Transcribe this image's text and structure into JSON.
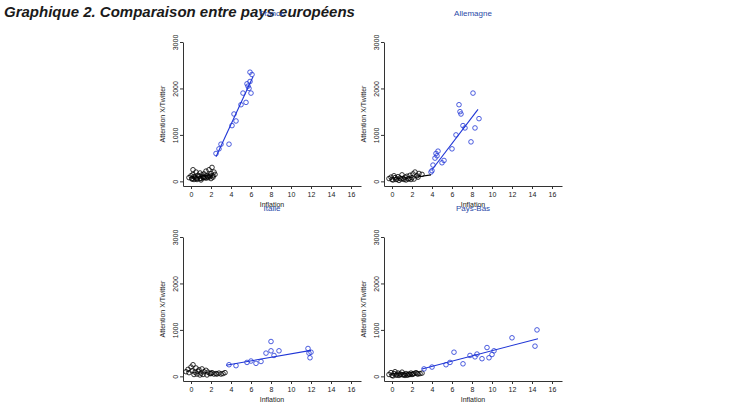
{
  "title": "Graphique 2. Comparaison entre pays européens",
  "chart_data": [
    {
      "type": "scatter",
      "title": "France",
      "x_label": "Inflation",
      "y_label": "Attention X/Twitter",
      "xlim": [
        -0.8,
        17
      ],
      "ylim": [
        -100,
        3000
      ],
      "xticks": [
        0,
        2,
        4,
        6,
        8,
        10,
        12,
        14,
        16
      ],
      "yticks": [
        0,
        1000,
        2000,
        3000
      ],
      "series": [
        {
          "color": "#000000",
          "marker": "circle",
          "x": [
            -0.2,
            0,
            0.1,
            0.2,
            0.3,
            0.4,
            0.5,
            0.6,
            0.7,
            0.8,
            0.9,
            1.0,
            1.1,
            1.2,
            1.3,
            1.4,
            1.5,
            1.6,
            1.7,
            1.8,
            1.9,
            2.0,
            2.1,
            2.2,
            2.3,
            2.4,
            0.1,
            0.3,
            0.5,
            1.0,
            1.2,
            1.5,
            1.7,
            0.2,
            0.6,
            0.9,
            1.3,
            1.9,
            2.0,
            2.2
          ],
          "values": [
            80,
            120,
            60,
            150,
            100,
            90,
            200,
            70,
            130,
            110,
            180,
            60,
            140,
            100,
            160,
            90,
            220,
            120,
            80,
            250,
            130,
            170,
            300,
            90,
            200,
            150,
            50,
            40,
            60,
            30,
            80,
            70,
            100,
            250,
            40,
            60,
            80,
            100,
            60,
            120
          ]
        },
        {
          "color": "#1f35d6",
          "marker": "circle",
          "x": [
            2.5,
            2.8,
            3.0,
            3.8,
            4.1,
            4.3,
            4.5,
            5.0,
            5.2,
            5.5,
            5.6,
            5.7,
            5.8,
            5.9,
            5.9,
            6.1,
            6.0
          ],
          "values": [
            600,
            700,
            800,
            800,
            1200,
            1450,
            1300,
            1650,
            1900,
            1700,
            2100,
            2050,
            2000,
            2150,
            2350,
            2300,
            1900
          ]
        },
        {
          "type": "line",
          "color": "#1f35d6",
          "x": [
            2.5,
            6.2
          ],
          "values": [
            530,
            2250
          ]
        }
      ]
    },
    {
      "type": "scatter",
      "title": "Allemagne",
      "x_label": "Inflation",
      "y_label": "Attention X/Twitter",
      "xlim": [
        -0.8,
        17
      ],
      "ylim": [
        -100,
        3000
      ],
      "xticks": [
        0,
        2,
        4,
        6,
        8,
        10,
        12,
        14,
        16
      ],
      "yticks": [
        0,
        1000,
        2000,
        3000
      ],
      "series": [
        {
          "color": "#000000",
          "marker": "circle",
          "x": [
            -0.3,
            -0.1,
            0,
            0.2,
            0.3,
            0.5,
            0.6,
            0.8,
            1.0,
            1.1,
            1.3,
            1.5,
            1.6,
            1.8,
            2.0,
            2.1,
            2.3,
            2.5,
            2.7,
            3.0,
            0.1,
            0.4,
            0.7,
            0.9,
            1.2,
            1.4,
            1.7,
            1.9,
            2.2,
            2.6
          ],
          "values": [
            60,
            90,
            40,
            120,
            80,
            50,
            100,
            70,
            140,
            60,
            90,
            110,
            50,
            130,
            80,
            160,
            200,
            120,
            170,
            150,
            30,
            40,
            20,
            50,
            40,
            30,
            60,
            40,
            50,
            90
          ]
        },
        {
          "color": "#1f35d6",
          "marker": "circle",
          "x": [
            3.9,
            4.0,
            4.1,
            4.3,
            4.4,
            4.5,
            4.6,
            5.0,
            5.2,
            6.0,
            6.4,
            6.7,
            6.8,
            6.9,
            7.1,
            7.3,
            7.9,
            8.1,
            8.3,
            8.7
          ],
          "values": [
            200,
            230,
            350,
            500,
            600,
            550,
            650,
            400,
            450,
            700,
            1000,
            1650,
            1500,
            1450,
            1200,
            1150,
            850,
            1900,
            1150,
            1350
          ]
        },
        {
          "type": "line",
          "color": "#000000",
          "x": [
            2.3,
            3.9
          ],
          "values": [
            90,
            140
          ]
        },
        {
          "type": "line",
          "color": "#1f35d6",
          "x": [
            4.0,
            8.6
          ],
          "values": [
            250,
            1550
          ]
        }
      ]
    },
    {
      "type": "scatter",
      "title": "Italie",
      "x_label": "Inflation",
      "y_label": "Attention X/Twitter",
      "xlim": [
        -0.8,
        17
      ],
      "ylim": [
        -100,
        3000
      ],
      "xticks": [
        0,
        2,
        4,
        6,
        8,
        10,
        12,
        14,
        16
      ],
      "yticks": [
        0,
        1000,
        2000,
        3000
      ],
      "series": [
        {
          "color": "#000000",
          "marker": "circle",
          "x": [
            -0.5,
            -0.3,
            -0.2,
            0,
            0.1,
            0.2,
            0.4,
            0.5,
            0.7,
            0.8,
            1.0,
            1.1,
            1.3,
            1.5,
            1.7,
            1.9,
            2.1,
            2.3,
            2.5,
            2.8,
            3.0,
            3.2,
            3.4,
            0.3,
            0.6,
            0.9,
            1.2,
            1.6,
            2.0,
            2.6
          ],
          "values": [
            100,
            150,
            80,
            200,
            120,
            250,
            90,
            180,
            110,
            140,
            70,
            160,
            100,
            130,
            90,
            60,
            80,
            50,
            60,
            70,
            50,
            60,
            80,
            40,
            50,
            30,
            40,
            30,
            60,
            50
          ]
        },
        {
          "color": "#1f35d6",
          "marker": "circle",
          "x": [
            3.8,
            4.5,
            5.6,
            6.0,
            6.5,
            7.0,
            7.5,
            8.0,
            8.0,
            8.3,
            8.8,
            11.7,
            11.9,
            11.8,
            12.0
          ],
          "values": [
            250,
            230,
            300,
            330,
            280,
            320,
            500,
            550,
            750,
            450,
            550,
            600,
            400,
            500,
            520
          ]
        },
        {
          "type": "line",
          "color": "#1f35d6",
          "x": [
            3.5,
            12.0
          ],
          "values": [
            240,
            560
          ]
        }
      ]
    },
    {
      "type": "scatter",
      "title": "Pays-Bas",
      "x_label": "Inflation",
      "y_label": "Attention X/Twitter",
      "xlim": [
        -0.8,
        17
      ],
      "ylim": [
        -100,
        3000
      ],
      "xticks": [
        0,
        2,
        4,
        6,
        8,
        10,
        12,
        14,
        16
      ],
      "yticks": [
        0,
        1000,
        2000,
        3000
      ],
      "series": [
        {
          "color": "#000000",
          "marker": "circle",
          "x": [
            -0.3,
            -0.1,
            0,
            0.2,
            0.3,
            0.5,
            0.6,
            0.8,
            1.0,
            1.2,
            1.4,
            1.5,
            1.7,
            1.9,
            2.0,
            2.2,
            2.4,
            2.6,
            2.8,
            3.0,
            0.1,
            0.4,
            0.7,
            0.9,
            1.1,
            1.3,
            1.6,
            1.8,
            2.1,
            2.5
          ],
          "values": [
            40,
            80,
            20,
            60,
            100,
            30,
            70,
            50,
            90,
            40,
            60,
            30,
            50,
            70,
            40,
            60,
            80,
            50,
            60,
            70,
            10,
            30,
            20,
            40,
            30,
            20,
            30,
            40,
            50,
            60
          ]
        },
        {
          "color": "#1f35d6",
          "marker": "circle",
          "x": [
            3.2,
            4.0,
            5.4,
            5.8,
            6.2,
            7.1,
            7.8,
            8.3,
            8.5,
            9.0,
            9.5,
            9.7,
            10.0,
            10.2,
            12.0,
            14.3,
            14.5
          ],
          "values": [
            160,
            200,
            250,
            300,
            520,
            270,
            450,
            420,
            480,
            380,
            620,
            400,
            470,
            550,
            830,
            650,
            1000
          ]
        },
        {
          "type": "line",
          "color": "#1f35d6",
          "x": [
            3.0,
            14.6
          ],
          "values": [
            160,
            810
          ]
        }
      ]
    }
  ]
}
